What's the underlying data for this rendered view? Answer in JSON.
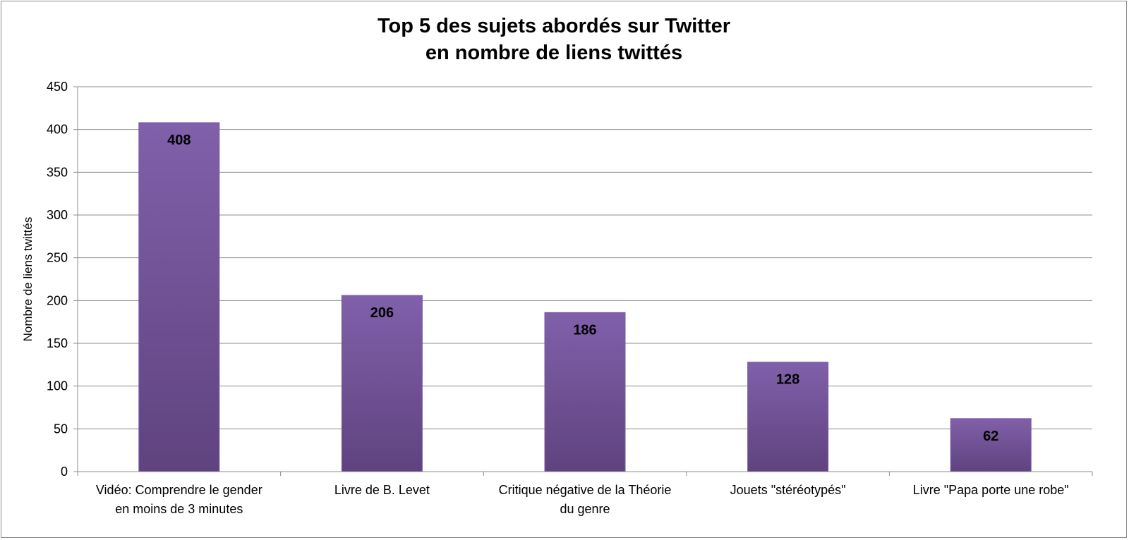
{
  "chart_data": {
    "type": "bar",
    "title": [
      "Top 5 des sujets abordés sur Twitter",
      "en nombre de liens twittés"
    ],
    "xlabel": "",
    "ylabel": "Nombre de liens twittés",
    "ylim": [
      0,
      450
    ],
    "ytick_step": 50,
    "yticks": [
      "0",
      "50",
      "100",
      "150",
      "200",
      "250",
      "300",
      "350",
      "400",
      "450"
    ],
    "grid": true,
    "categories": [
      [
        "Vidéo: Comprendre le gender",
        "en moins de 3 minutes"
      ],
      [
        "Livre de B. Levet"
      ],
      [
        "Critique négative de la Théorie",
        "du genre"
      ],
      [
        "Jouets \"stéréotypés\""
      ],
      [
        "Livre \"Papa porte une robe\""
      ]
    ],
    "values": [
      408,
      206,
      186,
      128,
      62
    ],
    "data_labels": [
      "408",
      "206",
      "186",
      "128",
      "62"
    ],
    "colors": {
      "bar_top": "#8060aa",
      "bar_bottom": "#5f437f",
      "grid": "#8c8c8c",
      "axis": "#8c8c8c"
    }
  }
}
